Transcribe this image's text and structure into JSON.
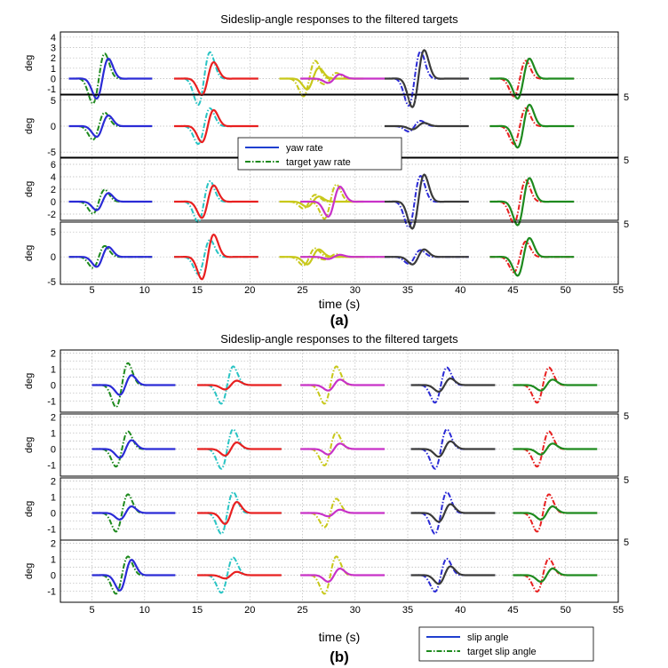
{
  "chart_data": [
    {
      "type": "line",
      "panel_label": "(a)",
      "title": "Sideslip-angle responses to the filtered targets",
      "xlabel": "time (s)",
      "ylabel": "deg",
      "xlim": [
        2,
        55
      ],
      "xticks": [
        5,
        10,
        15,
        20,
        25,
        30,
        35,
        40,
        45,
        50,
        55
      ],
      "grid": true,
      "legend": {
        "placement": "center-left",
        "entries": [
          {
            "label": "yaw rate",
            "style": "solid",
            "color": "#1f3fcf"
          },
          {
            "label": "target yaw rate",
            "style": "dashdot",
            "color": "#1e8a1e"
          }
        ]
      },
      "segment_colors": [
        "#2b2bd6",
        "#e82020",
        "#c8c81a",
        "#c832c8",
        "#3a3a3a",
        "#1e8a1e",
        "#29c4c4"
      ],
      "side_tick_label": "5",
      "subplots": [
        {
          "ylim": [
            -1.5,
            4.5
          ],
          "yticks": [
            -1,
            0,
            1,
            2,
            3,
            4
          ],
          "ytick_labels": [
            "-1",
            "0",
            "1",
            "2",
            "3",
            "4"
          ]
        },
        {
          "ylim": [
            -6,
            6
          ],
          "yticks": [
            -5,
            0,
            5
          ],
          "ytick_labels": [
            "-5",
            "0",
            "5"
          ]
        },
        {
          "ylim": [
            -3,
            7
          ],
          "yticks": [
            -2,
            0,
            2,
            4,
            6
          ],
          "ytick_labels": [
            "-2",
            "0",
            "2",
            "4",
            "6"
          ]
        },
        {
          "ylim": [
            -5.5,
            7
          ],
          "yticks": [
            -5,
            0,
            5
          ],
          "ytick_labels": [
            "-5",
            "0",
            "5"
          ]
        }
      ],
      "maneuvers": [
        {
          "t": 6.0,
          "color": "#2b2bd6",
          "amp": [
            2.8,
            3.0,
            2.0,
            2.9
          ],
          "tgt_color": "#1e8a1e",
          "tgt_amp": [
            3.5,
            3.8,
            2.8,
            3.2
          ]
        },
        {
          "t": 16.0,
          "color": "#e82020",
          "amp": [
            2.3,
            4.5,
            3.8,
            6.5
          ],
          "tgt_color": "#29c4c4",
          "tgt_amp": [
            3.7,
            5.0,
            4.8,
            5.0
          ]
        },
        {
          "t": 26.0,
          "color": "#c8c81a",
          "amp": [
            1.5,
            0.0,
            1.2,
            2.2
          ],
          "tgt_color": "#c8c81a",
          "tgt_amp": [
            2.5,
            0.0,
            1.6,
            2.5
          ]
        },
        {
          "t": 28.0,
          "color": "#c832c8",
          "amp": [
            0.6,
            0.0,
            3.5,
            0.6
          ],
          "tgt_color": "#c8c81a",
          "tgt_amp": [
            0.8,
            0.0,
            4.0,
            0.8
          ]
        },
        {
          "t": 36.0,
          "color": "#3a3a3a",
          "amp": [
            4.0,
            0.9,
            6.3,
            2.2
          ],
          "tgt_color": "#2b2bd6",
          "tgt_amp": [
            3.8,
            1.5,
            6.0,
            2.0
          ]
        },
        {
          "t": 46.0,
          "color": "#1e8a1e",
          "amp": [
            2.8,
            6.0,
            5.5,
            5.5
          ],
          "tgt_color": "#e82020",
          "tgt_amp": [
            2.5,
            5.0,
            5.0,
            4.5
          ]
        }
      ]
    },
    {
      "type": "line",
      "panel_label": "(b)",
      "title": "Sideslip-angle responses to the filtered targets",
      "xlabel": "time (s)",
      "ylabel": "deg",
      "xlim": [
        2,
        55
      ],
      "xticks": [
        5,
        10,
        15,
        20,
        25,
        30,
        35,
        40,
        45,
        50,
        55
      ],
      "grid": true,
      "legend": {
        "placement": "bottom-right",
        "entries": [
          {
            "label": "slip angle",
            "style": "solid",
            "color": "#1f3fcf"
          },
          {
            "label": "target slip angle",
            "style": "dashdot",
            "color": "#1e8a1e"
          }
        ]
      },
      "side_tick_label": "5",
      "subplots": [
        {
          "ylim": [
            -1.7,
            2.2
          ],
          "yticks": [
            -1,
            -0.5,
            0,
            0.5,
            1,
            1.5,
            2
          ],
          "ytick_labels": [
            "-1",
            "",
            "0",
            "",
            "1",
            "",
            "2"
          ]
        },
        {
          "ylim": [
            -1.7,
            2.2
          ],
          "yticks": [
            -1,
            -0.5,
            0,
            0.5,
            1,
            1.5,
            2
          ],
          "ytick_labels": [
            "-1",
            "",
            "0",
            "",
            "1",
            "",
            "2"
          ]
        },
        {
          "ylim": [
            -1.7,
            2.2
          ],
          "yticks": [
            -1,
            -0.5,
            0,
            0.5,
            1,
            1.5,
            2
          ],
          "ytick_labels": [
            "-1",
            "",
            "0",
            "",
            "1",
            "",
            "2"
          ]
        },
        {
          "ylim": [
            -1.7,
            2.2
          ],
          "yticks": [
            -1,
            -0.5,
            0,
            0.5,
            1,
            1.5,
            2
          ],
          "ytick_labels": [
            "-1",
            "",
            "0",
            "",
            "1",
            "",
            "2"
          ]
        }
      ],
      "maneuvers": [
        {
          "t": 8.2,
          "color": "#2b2bd6",
          "amp": [
            0.9,
            0.8,
            0.6,
            1.4
          ],
          "tgt_color": "#1e8a1e",
          "tgt_amp": [
            2.0,
            1.6,
            1.7,
            1.7
          ]
        },
        {
          "t": 18.2,
          "color": "#e82020",
          "amp": [
            0.4,
            0.6,
            1.0,
            0.3
          ],
          "tgt_color": "#29c4c4",
          "tgt_amp": [
            1.7,
            1.8,
            1.9,
            1.6
          ]
        },
        {
          "t": 28.0,
          "color": "#c832c8",
          "amp": [
            0.5,
            0.5,
            0.3,
            0.6
          ],
          "tgt_color": "#c8c81a",
          "tgt_amp": [
            1.7,
            1.5,
            1.3,
            1.7
          ]
        },
        {
          "t": 38.5,
          "color": "#3a3a3a",
          "amp": [
            0.6,
            0.7,
            0.8,
            0.8
          ],
          "tgt_color": "#2b2bd6",
          "tgt_amp": [
            1.6,
            1.8,
            1.9,
            1.5
          ]
        },
        {
          "t": 48.2,
          "color": "#1e8a1e",
          "amp": [
            0.5,
            0.5,
            0.6,
            0.6
          ],
          "tgt_color": "#e82020",
          "tgt_amp": [
            1.6,
            1.6,
            1.7,
            1.5
          ]
        }
      ]
    }
  ]
}
